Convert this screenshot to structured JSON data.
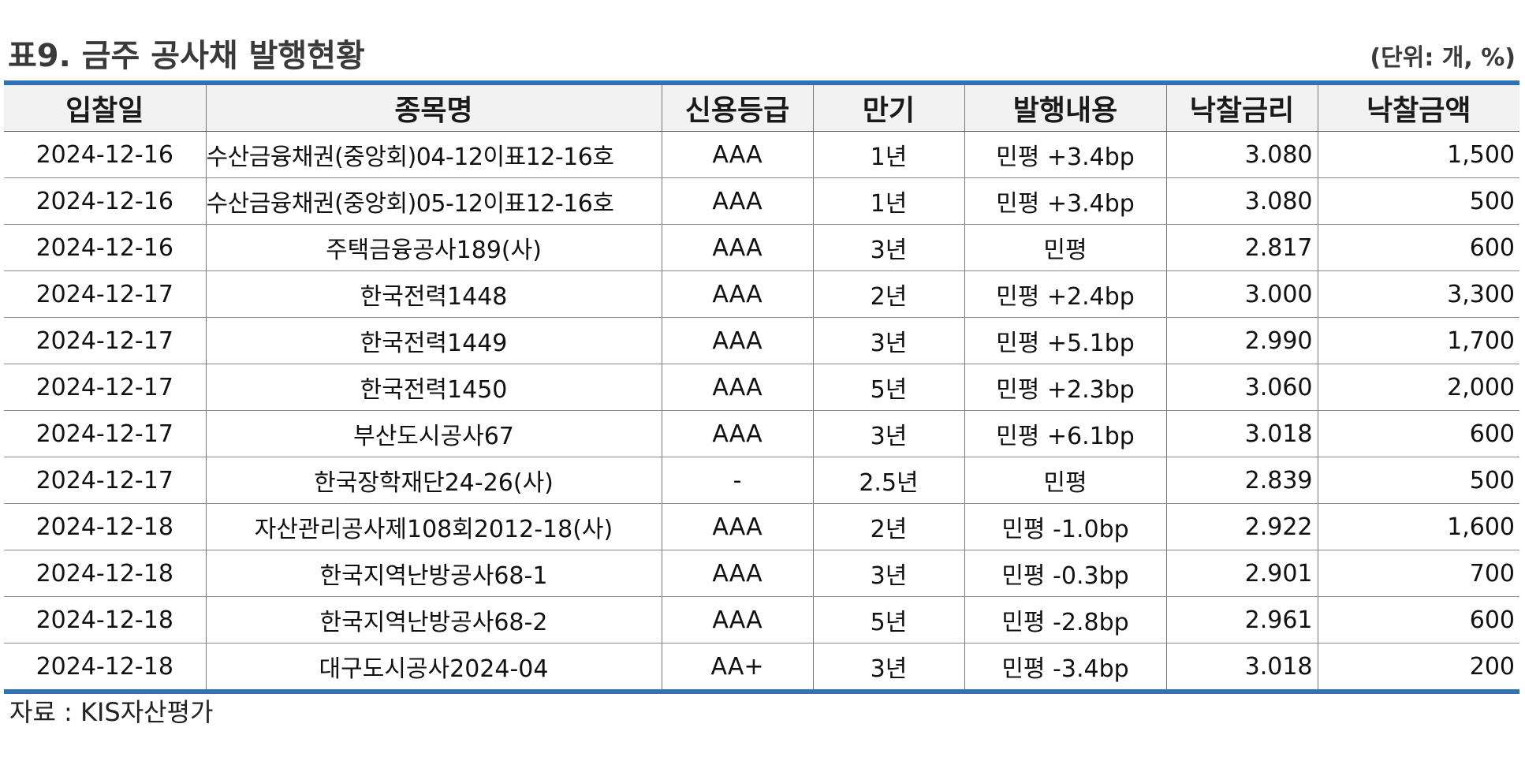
{
  "title": "표9. 금주 공사채 발행현황",
  "unit": "(단위: 개, %)",
  "columns": [
    "입찰일",
    "종목명",
    "신용등급",
    "만기",
    "발행내용",
    "낙찰금리",
    "낙찰금액"
  ],
  "rows": [
    [
      "2024-12-16",
      "수산금융채권(중앙회)04-12이표12-16호",
      "AAA",
      "1년",
      "민평 +3.4bp",
      "3.080",
      "1,500"
    ],
    [
      "2024-12-16",
      "수산금융채권(중앙회)05-12이표12-16호",
      "AAA",
      "1년",
      "민평 +3.4bp",
      "3.080",
      "500"
    ],
    [
      "2024-12-16",
      "주택금융공사189(사)",
      "AAA",
      "3년",
      "민평",
      "2.817",
      "600"
    ],
    [
      "2024-12-17",
      "한국전력1448",
      "AAA",
      "2년",
      "민평 +2.4bp",
      "3.000",
      "3,300"
    ],
    [
      "2024-12-17",
      "한국전력1449",
      "AAA",
      "3년",
      "민평 +5.1bp",
      "2.990",
      "1,700"
    ],
    [
      "2024-12-17",
      "한국전력1450",
      "AAA",
      "5년",
      "민평 +2.3bp",
      "3.060",
      "2,000"
    ],
    [
      "2024-12-17",
      "부산도시공사67",
      "AAA",
      "3년",
      "민평 +6.1bp",
      "3.018",
      "600"
    ],
    [
      "2024-12-17",
      "한국장학재단24-26(사)",
      "-",
      "2.5년",
      "민평",
      "2.839",
      "500"
    ],
    [
      "2024-12-18",
      "자산관리공사제108회2012-18(사)",
      "AAA",
      "2년",
      "민평 -1.0bp",
      "2.922",
      "1,600"
    ],
    [
      "2024-12-18",
      "한국지역난방공사68-1",
      "AAA",
      "3년",
      "민평 -0.3bp",
      "2.901",
      "700"
    ],
    [
      "2024-12-18",
      "한국지역난방공사68-2",
      "AAA",
      "5년",
      "민평 -2.8bp",
      "2.961",
      "600"
    ],
    [
      "2024-12-18",
      "대구도시공사2024-04",
      "AA+",
      "3년",
      "민평 -3.4bp",
      "3.018",
      "200"
    ]
  ],
  "source": "자료 : KIS자산평가",
  "colors": {
    "border_accent": "#2e74b5",
    "header_bg": "#f2f2f2"
  }
}
